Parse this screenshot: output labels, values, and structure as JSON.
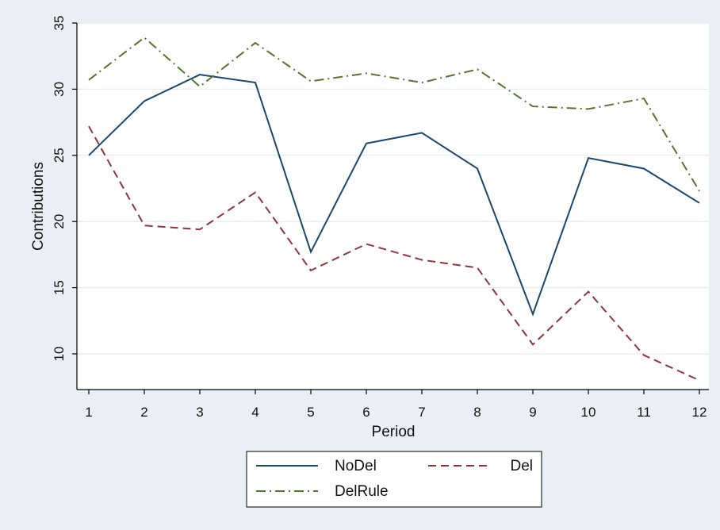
{
  "chart_data": {
    "type": "line",
    "title": "",
    "xlabel": "Period",
    "ylabel": "Contributions",
    "x": [
      1,
      2,
      3,
      4,
      5,
      6,
      7,
      8,
      9,
      10,
      11,
      12
    ],
    "xticks": [
      "1",
      "2",
      "3",
      "4",
      "5",
      "6",
      "7",
      "8",
      "9",
      "10",
      "11",
      "12"
    ],
    "yticks": [
      "10",
      "15",
      "20",
      "25",
      "30",
      "35"
    ],
    "xlim": [
      1,
      12
    ],
    "ylim": [
      7.3,
      35
    ],
    "grid": "horizontal",
    "legend_position": "bottom",
    "series": [
      {
        "name": "NoDel",
        "color": "#1a476f",
        "style": "solid",
        "values": [
          25.0,
          29.1,
          31.1,
          30.5,
          17.7,
          25.9,
          26.7,
          24.0,
          13.0,
          24.8,
          24.0,
          21.4
        ]
      },
      {
        "name": "Del",
        "color": "#90353b",
        "style": "dashed",
        "values": [
          27.2,
          19.7,
          19.4,
          22.2,
          16.3,
          18.3,
          17.1,
          16.5,
          10.7,
          14.7,
          9.9,
          8.0
        ]
      },
      {
        "name": "DelRule",
        "color": "#55752f",
        "style": "dashdot",
        "values": [
          30.7,
          33.9,
          30.2,
          33.5,
          30.6,
          31.2,
          30.5,
          31.5,
          28.7,
          28.5,
          29.3,
          22.3
        ]
      }
    ]
  }
}
